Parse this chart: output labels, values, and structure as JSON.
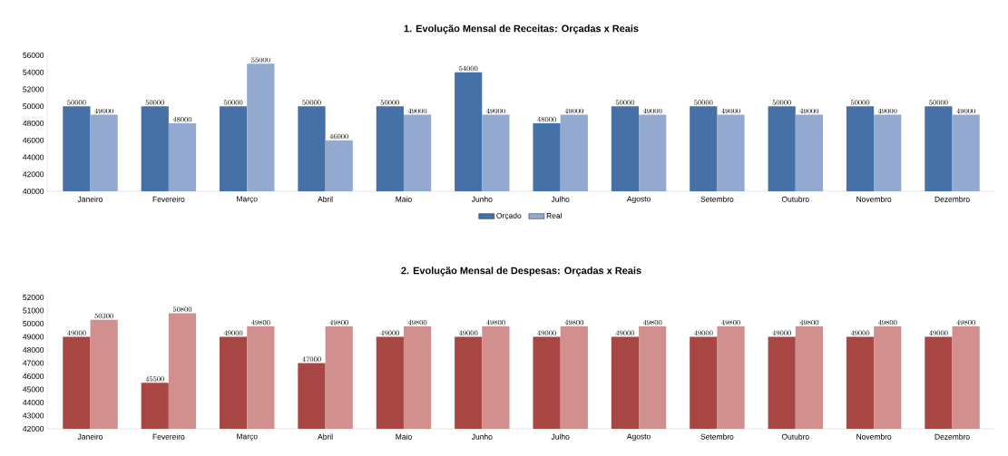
{
  "chart_data": [
    {
      "type": "bar",
      "title": "1. Evolução Mensal de Receitas: Orçadas x Reais",
      "categories": [
        "Janeiro",
        "Fevereiro",
        "Março",
        "Abril",
        "Maio",
        "Junho",
        "Julho",
        "Agosto",
        "Setembro",
        "Outubro",
        "Novembro",
        "Dezembro"
      ],
      "series": [
        {
          "name": "Orçado",
          "color": "#4571a7",
          "values": [
            50000,
            50000,
            50000,
            50000,
            50000,
            54000,
            48000,
            50000,
            50000,
            50000,
            50000,
            50000
          ]
        },
        {
          "name": "Real",
          "color": "#93a9cf",
          "values": [
            49000,
            48000,
            55000,
            46000,
            49000,
            49000,
            49000,
            49000,
            49000,
            49000,
            49000,
            49000
          ]
        }
      ],
      "ylim": [
        40000,
        56000
      ],
      "yticks": [
        40000,
        42000,
        44000,
        46000,
        48000,
        50000,
        52000,
        54000,
        56000
      ],
      "data_labels": true,
      "legend": "bottom"
    },
    {
      "type": "bar",
      "title": "2. Evolução Mensal de Despesas: Orçadas x Reais",
      "categories": [
        "Janeiro",
        "Fevereiro",
        "Março",
        "Abril",
        "Maio",
        "Junho",
        "Julho",
        "Agosto",
        "Setembro",
        "Outubro",
        "Novembro",
        "Dezembro"
      ],
      "series": [
        {
          "color": "#a84644",
          "values": [
            49000,
            45500,
            49000,
            47000,
            49000,
            49000,
            49000,
            49000,
            49000,
            49000,
            49000,
            49000
          ]
        },
        {
          "color": "#d18f8e",
          "values": [
            50300,
            50800,
            49800,
            49800,
            49800,
            49800,
            49800,
            49800,
            49800,
            49800,
            49800,
            49800
          ]
        }
      ],
      "ylim": [
        42000,
        52000
      ],
      "yticks": [
        42000,
        43000,
        44000,
        45000,
        46000,
        47000,
        48000,
        49000,
        50000,
        51000,
        52000
      ],
      "data_labels": true
    }
  ]
}
